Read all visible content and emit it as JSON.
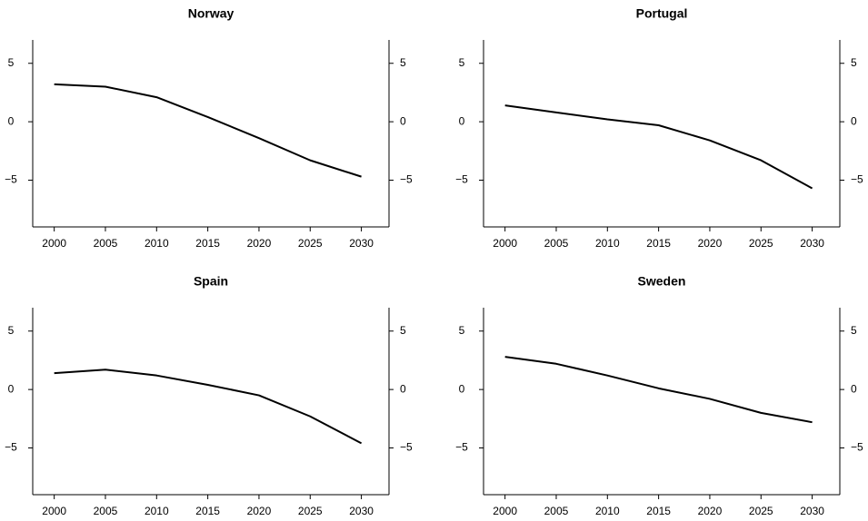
{
  "chart_data": [
    {
      "type": "line",
      "title": "Norway",
      "x": [
        2000,
        2005,
        2010,
        2015,
        2020,
        2025,
        2030
      ],
      "values": [
        3.2,
        3.0,
        2.1,
        0.4,
        -1.4,
        -3.3,
        -4.7
      ],
      "color": "#000000",
      "xlim": [
        1997.9,
        2032.7
      ],
      "ylim": [
        -9,
        7
      ],
      "xticks": [
        2000,
        2005,
        2010,
        2015,
        2020,
        2025,
        2030
      ],
      "yticks": [
        {
          "value": -5,
          "label": "−5"
        },
        0,
        5
      ]
    },
    {
      "type": "line",
      "title": "Portugal",
      "x": [
        2000,
        2005,
        2010,
        2015,
        2020,
        2025,
        2030
      ],
      "values": [
        1.4,
        0.8,
        0.2,
        -0.3,
        -1.6,
        -3.3,
        -5.7
      ],
      "color": "#000000",
      "xlim": [
        1997.9,
        2032.7
      ],
      "ylim": [
        -9,
        7
      ],
      "xticks": [
        2000,
        2005,
        2010,
        2015,
        2020,
        2025,
        2030
      ],
      "yticks": [
        {
          "value": -5,
          "label": "−5"
        },
        0,
        5
      ]
    },
    {
      "type": "line",
      "title": "Spain",
      "x": [
        2000,
        2005,
        2010,
        2015,
        2020,
        2025,
        2030
      ],
      "values": [
        1.4,
        1.7,
        1.2,
        0.4,
        -0.5,
        -2.3,
        -4.6
      ],
      "color": "#000000",
      "xlim": [
        1997.9,
        2032.7
      ],
      "ylim": [
        -9,
        7
      ],
      "xticks": [
        2000,
        2005,
        2010,
        2015,
        2020,
        2025,
        2030
      ],
      "yticks": [
        {
          "value": -5,
          "label": "−5"
        },
        0,
        5
      ]
    },
    {
      "type": "line",
      "title": "Sweden",
      "x": [
        2000,
        2005,
        2010,
        2015,
        2020,
        2025,
        2030
      ],
      "values": [
        2.8,
        2.2,
        1.2,
        0.1,
        -0.8,
        -2.0,
        -2.8
      ],
      "color": "#000000",
      "xlim": [
        1997.9,
        2032.7
      ],
      "ylim": [
        -9,
        7
      ],
      "xticks": [
        2000,
        2005,
        2010,
        2015,
        2020,
        2025,
        2030
      ],
      "yticks": [
        {
          "value": -5,
          "label": "−5"
        },
        0,
        5
      ]
    }
  ]
}
